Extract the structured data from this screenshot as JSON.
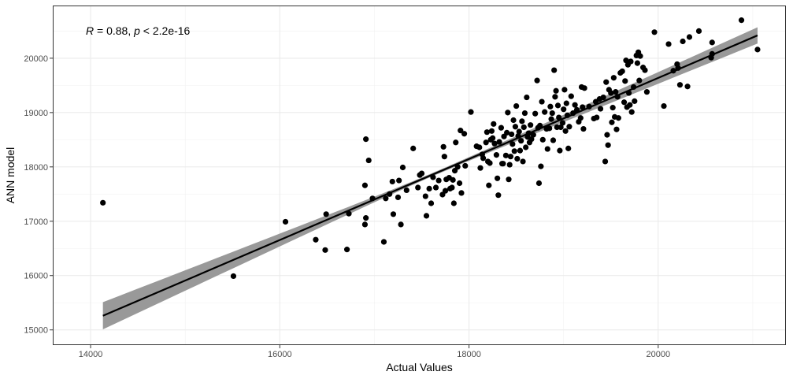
{
  "chart_data": {
    "type": "scatter",
    "title": "",
    "xlabel": "Actual Values",
    "ylabel": "ANN model",
    "xlim": [
      13600,
      21350
    ],
    "ylim": [
      14720,
      20970
    ],
    "x_ticks": [
      14000,
      16000,
      18000,
      20000
    ],
    "y_ticks": [
      15000,
      16000,
      17000,
      18000,
      19000,
      20000
    ],
    "x_tick_labels": [
      "14000",
      "16000",
      "18000",
      "20000"
    ],
    "y_tick_labels": [
      "15000",
      "16000",
      "17000",
      "18000",
      "19000",
      "20000"
    ],
    "grid": true,
    "annotation": {
      "r_symbol": "R",
      "r_text": " = 0.88, ",
      "p_symbol": "p",
      "p_text": " < 2.2e-16"
    },
    "regression": {
      "x": [
        14130,
        21050
      ],
      "y": [
        15260,
        20420
      ],
      "ci_lower": [
        15010,
        20270
      ],
      "ci_upper": [
        15510,
        20570
      ]
    },
    "points": [
      [
        14130,
        17340
      ],
      [
        15510,
        15990
      ],
      [
        16060,
        16990
      ],
      [
        16380,
        16660
      ],
      [
        16480,
        16470
      ],
      [
        16490,
        17130
      ],
      [
        16710,
        16480
      ],
      [
        16730,
        17140
      ],
      [
        16900,
        17660
      ],
      [
        16900,
        16940
      ],
      [
        16910,
        18510
      ],
      [
        16910,
        17060
      ],
      [
        16940,
        18120
      ],
      [
        16980,
        17420
      ],
      [
        17100,
        16620
      ],
      [
        17120,
        17420
      ],
      [
        17160,
        17500
      ],
      [
        17190,
        17730
      ],
      [
        17200,
        17130
      ],
      [
        17250,
        17440
      ],
      [
        17260,
        17750
      ],
      [
        17280,
        16940
      ],
      [
        17300,
        17990
      ],
      [
        17340,
        17570
      ],
      [
        17410,
        18340
      ],
      [
        17460,
        17620
      ],
      [
        17480,
        17850
      ],
      [
        17500,
        17880
      ],
      [
        17540,
        17460
      ],
      [
        17550,
        17100
      ],
      [
        17580,
        17600
      ],
      [
        17600,
        17330
      ],
      [
        17620,
        17810
      ],
      [
        17650,
        17620
      ],
      [
        17680,
        17750
      ],
      [
        17720,
        17490
      ],
      [
        17730,
        18370
      ],
      [
        17740,
        18190
      ],
      [
        17750,
        17560
      ],
      [
        17760,
        17770
      ],
      [
        17790,
        17800
      ],
      [
        17800,
        17600
      ],
      [
        17820,
        17620
      ],
      [
        17830,
        17760
      ],
      [
        17840,
        17330
      ],
      [
        17850,
        17930
      ],
      [
        17860,
        18450
      ],
      [
        17880,
        18000
      ],
      [
        17900,
        17700
      ],
      [
        17910,
        18670
      ],
      [
        17920,
        17520
      ],
      [
        17950,
        18610
      ],
      [
        17960,
        18020
      ],
      [
        18020,
        19010
      ],
      [
        18080,
        18380
      ],
      [
        18110,
        18360
      ],
      [
        18120,
        17980
      ],
      [
        18140,
        18230
      ],
      [
        18150,
        18160
      ],
      [
        18180,
        18450
      ],
      [
        18190,
        18640
      ],
      [
        18200,
        18100
      ],
      [
        18210,
        17660
      ],
      [
        18220,
        18070
      ],
      [
        18230,
        18500
      ],
      [
        18240,
        18660
      ],
      [
        18250,
        18530
      ],
      [
        18260,
        18790
      ],
      [
        18270,
        18430
      ],
      [
        18290,
        18220
      ],
      [
        18300,
        17790
      ],
      [
        18310,
        17480
      ],
      [
        18320,
        18460
      ],
      [
        18340,
        18720
      ],
      [
        18350,
        18060
      ],
      [
        18360,
        18060
      ],
      [
        18370,
        18560
      ],
      [
        18390,
        18210
      ],
      [
        18400,
        18630
      ],
      [
        18410,
        19000
      ],
      [
        18420,
        17770
      ],
      [
        18430,
        18040
      ],
      [
        18440,
        18190
      ],
      [
        18450,
        18600
      ],
      [
        18460,
        18420
      ],
      [
        18470,
        18860
      ],
      [
        18480,
        18290
      ],
      [
        18490,
        18740
      ],
      [
        18500,
        19120
      ],
      [
        18510,
        18150
      ],
      [
        18520,
        18570
      ],
      [
        18530,
        18650
      ],
      [
        18540,
        18300
      ],
      [
        18550,
        18480
      ],
      [
        18560,
        18840
      ],
      [
        18570,
        18100
      ],
      [
        18580,
        18730
      ],
      [
        18590,
        18990
      ],
      [
        18600,
        18360
      ],
      [
        18610,
        19280
      ],
      [
        18620,
        18550
      ],
      [
        18630,
        18620
      ],
      [
        18640,
        18450
      ],
      [
        18650,
        18770
      ],
      [
        18660,
        18510
      ],
      [
        18680,
        18590
      ],
      [
        18700,
        18980
      ],
      [
        18720,
        19590
      ],
      [
        18730,
        18720
      ],
      [
        18740,
        17700
      ],
      [
        18750,
        18760
      ],
      [
        18760,
        18010
      ],
      [
        18770,
        19200
      ],
      [
        18780,
        18500
      ],
      [
        18800,
        19010
      ],
      [
        18820,
        18700
      ],
      [
        18830,
        18330
      ],
      [
        18850,
        18710
      ],
      [
        18860,
        19110
      ],
      [
        18870,
        18880
      ],
      [
        18880,
        18990
      ],
      [
        18890,
        18490
      ],
      [
        18900,
        19780
      ],
      [
        18910,
        19290
      ],
      [
        18920,
        19400
      ],
      [
        18930,
        18730
      ],
      [
        18940,
        19130
      ],
      [
        18950,
        18910
      ],
      [
        18960,
        18300
      ],
      [
        18970,
        18730
      ],
      [
        18990,
        18810
      ],
      [
        19000,
        19060
      ],
      [
        19010,
        19420
      ],
      [
        19020,
        18660
      ],
      [
        19030,
        19170
      ],
      [
        19040,
        18950
      ],
      [
        19050,
        18340
      ],
      [
        19060,
        18740
      ],
      [
        19080,
        19300
      ],
      [
        19100,
        18990
      ],
      [
        19120,
        19140
      ],
      [
        19140,
        19050
      ],
      [
        19160,
        18830
      ],
      [
        19180,
        18900
      ],
      [
        19190,
        19470
      ],
      [
        19200,
        19100
      ],
      [
        19210,
        18700
      ],
      [
        19220,
        19450
      ],
      [
        19270,
        19110
      ],
      [
        19320,
        18890
      ],
      [
        19340,
        19200
      ],
      [
        19350,
        18910
      ],
      [
        19380,
        19250
      ],
      [
        19390,
        19070
      ],
      [
        19420,
        19280
      ],
      [
        19440,
        18100
      ],
      [
        19450,
        19560
      ],
      [
        19460,
        18590
      ],
      [
        19470,
        18400
      ],
      [
        19480,
        19420
      ],
      [
        19500,
        19360
      ],
      [
        19510,
        18820
      ],
      [
        19520,
        19090
      ],
      [
        19530,
        19640
      ],
      [
        19540,
        18920
      ],
      [
        19550,
        19380
      ],
      [
        19560,
        18690
      ],
      [
        19570,
        19290
      ],
      [
        19580,
        18900
      ],
      [
        19600,
        19730
      ],
      [
        19620,
        19760
      ],
      [
        19640,
        19190
      ],
      [
        19650,
        19580
      ],
      [
        19660,
        19960
      ],
      [
        19670,
        19100
      ],
      [
        19680,
        19880
      ],
      [
        19690,
        19360
      ],
      [
        19700,
        19140
      ],
      [
        19710,
        19940
      ],
      [
        19720,
        19010
      ],
      [
        19740,
        19470
      ],
      [
        19750,
        19210
      ],
      [
        19770,
        20050
      ],
      [
        19780,
        19910
      ],
      [
        19790,
        20110
      ],
      [
        19800,
        19590
      ],
      [
        19810,
        20040
      ],
      [
        19840,
        19830
      ],
      [
        19860,
        19780
      ],
      [
        19880,
        19380
      ],
      [
        19960,
        20480
      ],
      [
        20060,
        19120
      ],
      [
        20110,
        20260
      ],
      [
        20160,
        19770
      ],
      [
        20200,
        19890
      ],
      [
        20210,
        19820
      ],
      [
        20230,
        19510
      ],
      [
        20260,
        20310
      ],
      [
        20310,
        19480
      ],
      [
        20330,
        20390
      ],
      [
        20430,
        20500
      ],
      [
        20560,
        20010
      ],
      [
        20570,
        20290
      ],
      [
        20570,
        20080
      ],
      [
        20880,
        20700
      ],
      [
        21050,
        20160
      ]
    ]
  }
}
